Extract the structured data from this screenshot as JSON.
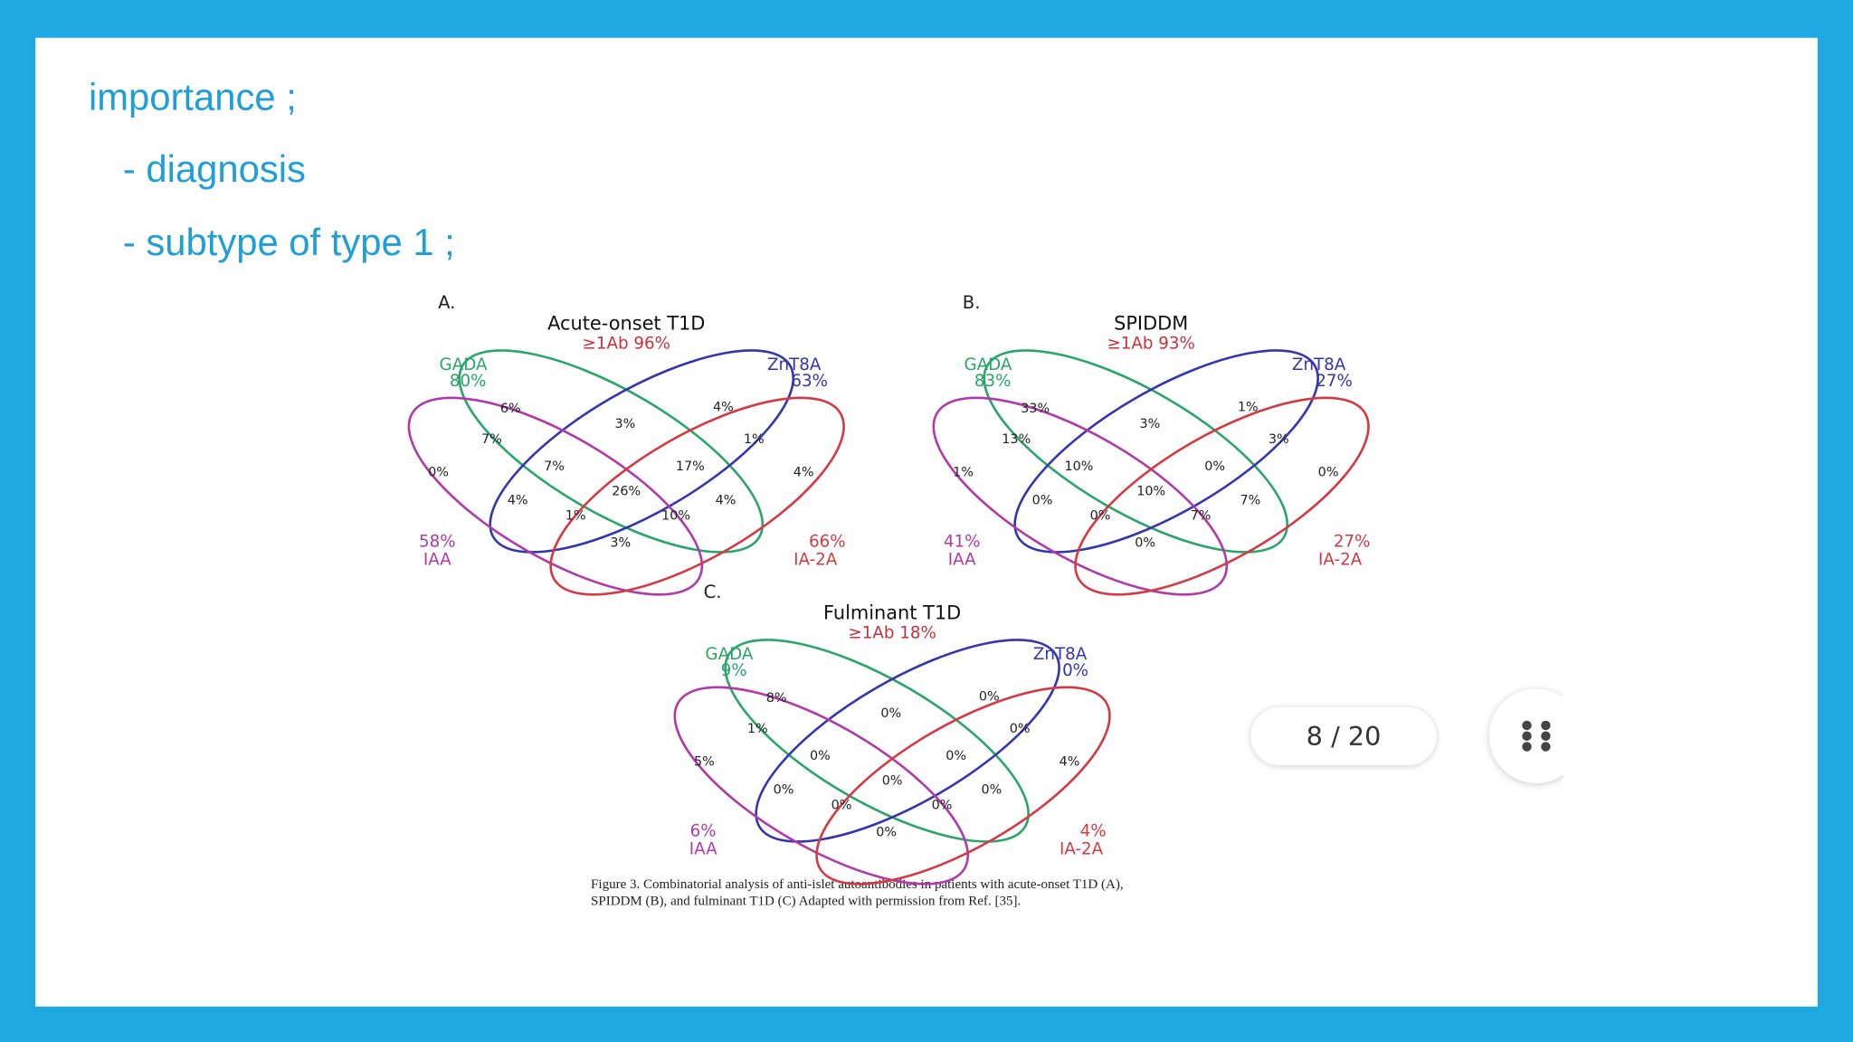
{
  "slide": {
    "lines": [
      "importance ;",
      "- diagnosis",
      "- subtype of type 1 ;"
    ]
  },
  "figure": {
    "panels": [
      {
        "letter": "A.",
        "title": "Acute-onset T1D",
        "subtitle": "≥1Ab 96%",
        "sets": {
          "gada": {
            "name": "GADA",
            "pct": "80%"
          },
          "znt8a": {
            "name": "ZnT8A",
            "pct": "63%"
          },
          "iaa": {
            "name": "IAA",
            "pct": "58%"
          },
          "ia2a": {
            "name": "IA-2A",
            "pct": "66%"
          }
        },
        "regions": [
          "6%",
          "3%",
          "4%",
          "7%",
          "1%",
          "0%",
          "7%",
          "17%",
          "4%",
          "26%",
          "4%",
          "4%",
          "1%",
          "10%",
          "3%"
        ]
      },
      {
        "letter": "B.",
        "title": "SPIDDM",
        "subtitle": "≥1Ab 93%",
        "sets": {
          "gada": {
            "name": "GADA",
            "pct": "83%"
          },
          "znt8a": {
            "name": "ZnT8A",
            "pct": "27%"
          },
          "iaa": {
            "name": "IAA",
            "pct": "41%"
          },
          "ia2a": {
            "name": "IA-2A",
            "pct": "27%"
          }
        },
        "regions": [
          "33%",
          "3%",
          "1%",
          "13%",
          "3%",
          "1%",
          "10%",
          "0%",
          "0%",
          "10%",
          "0%",
          "7%",
          "0%",
          "7%",
          "0%"
        ]
      },
      {
        "letter": "C.",
        "title": "Fulminant T1D",
        "subtitle": "≥1Ab 18%",
        "sets": {
          "gada": {
            "name": "GADA",
            "pct": "9%"
          },
          "znt8a": {
            "name": "ZnT8A",
            "pct": "0%"
          },
          "iaa": {
            "name": "IAA",
            "pct": "6%"
          },
          "ia2a": {
            "name": "IA-2A",
            "pct": "4%"
          }
        },
        "regions": [
          "8%",
          "0%",
          "0%",
          "1%",
          "0%",
          "5%",
          "0%",
          "0%",
          "4%",
          "0%",
          "0%",
          "0%",
          "0%",
          "0%",
          "0%"
        ]
      }
    ],
    "caption": [
      "Figure 3. Combinatorial analysis of anti-islet autoantibodies in patients with acute-onset T1D (A),",
      "SPIDDM (B), and fulminant T1D (C) Adapted with permission from Ref. [35]."
    ]
  },
  "viewer": {
    "page": "8 / 20"
  }
}
